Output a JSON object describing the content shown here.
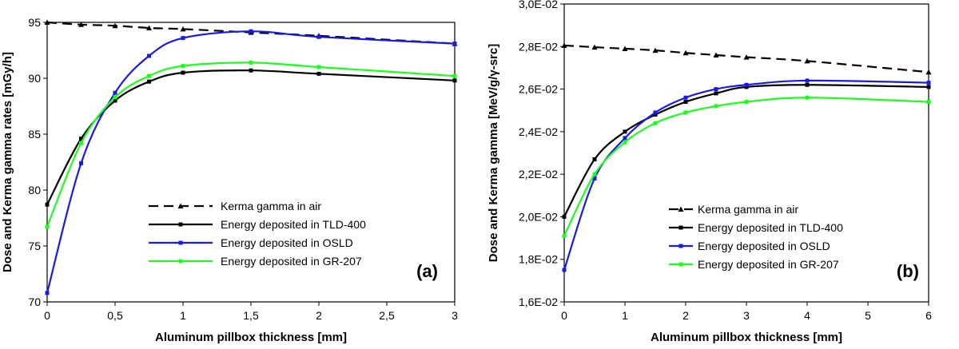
{
  "chart_data": [
    {
      "type": "line",
      "panel_label": "(a)",
      "xlabel": "Aluminum pillbox thickness [mm]",
      "ylabel": "Dose and Kerma gamma rates [mGy/h]",
      "xlim": [
        0,
        3
      ],
      "ylim": [
        70,
        95
      ],
      "x_ticks": [
        0,
        0.5,
        1,
        1.5,
        2,
        2.5,
        3
      ],
      "x_tick_labels": [
        "0",
        "0,5",
        "1",
        "1,5",
        "2",
        "2,5",
        "3"
      ],
      "y_ticks": [
        70,
        75,
        80,
        85,
        90,
        95
      ],
      "y_tick_labels": [
        "70",
        "75",
        "80",
        "85",
        "90",
        "95"
      ],
      "legend_position": "center-right",
      "series": [
        {
          "name": "Kerma gamma in air",
          "color": "#000000",
          "style": "dashed",
          "marker": "triangle",
          "x": [
            0,
            0.25,
            0.5,
            0.75,
            1,
            1.5,
            2,
            3
          ],
          "y": [
            95.0,
            94.8,
            94.7,
            94.5,
            94.4,
            94.1,
            93.8,
            93.1
          ]
        },
        {
          "name": "Energy deposited in TLD-400",
          "color": "#000000",
          "style": "solid",
          "marker": "square",
          "x": [
            0,
            0.25,
            0.5,
            0.75,
            1,
            1.5,
            2,
            3
          ],
          "y": [
            78.7,
            84.6,
            88.0,
            89.7,
            90.5,
            90.7,
            90.4,
            89.8
          ]
        },
        {
          "name": "Energy deposited in OSLD",
          "color": "#1a1ae6",
          "style": "solid",
          "marker": "square",
          "x": [
            0,
            0.25,
            0.5,
            0.75,
            1,
            1.5,
            2,
            3
          ],
          "y": [
            70.8,
            82.4,
            88.7,
            92.0,
            93.6,
            94.2,
            93.7,
            93.1
          ]
        },
        {
          "name": "Energy deposited in GR-207",
          "color": "#1aff1a",
          "style": "solid",
          "marker": "square",
          "x": [
            0,
            0.25,
            0.5,
            0.75,
            1,
            1.5,
            2,
            3
          ],
          "y": [
            76.7,
            84.2,
            88.3,
            90.2,
            91.1,
            91.4,
            91.0,
            90.2
          ]
        }
      ]
    },
    {
      "type": "line",
      "panel_label": "(b)",
      "xlabel": "Aluminum pillbox thickness [mm]",
      "ylabel": "Dose and Kerma gamma [MeV/g/γ-src]",
      "xlim": [
        0,
        6
      ],
      "ylim": [
        0.016,
        0.03
      ],
      "x_ticks": [
        0,
        1,
        2,
        3,
        4,
        5,
        6
      ],
      "x_tick_labels": [
        "0",
        "1",
        "2",
        "3",
        "4",
        "5",
        "6"
      ],
      "y_ticks": [
        0.016,
        0.018,
        0.02,
        0.022,
        0.024,
        0.026,
        0.028,
        0.03
      ],
      "y_tick_labels": [
        "1,6E-02",
        "1,8E-02",
        "2,0E-02",
        "2,2E-02",
        "2,4E-02",
        "2,6E-02",
        "2,8E-02",
        "3,0E-02"
      ],
      "legend_position": "bottom-right",
      "series": [
        {
          "name": "Kerma gamma in air",
          "color": "#000000",
          "style": "dashed",
          "marker": "triangle",
          "x": [
            0,
            0.5,
            1,
            1.5,
            2,
            2.5,
            3,
            4,
            6
          ],
          "y": [
            0.02805,
            0.02797,
            0.0279,
            0.02782,
            0.0277,
            0.0276,
            0.0275,
            0.02732,
            0.0268
          ]
        },
        {
          "name": "Energy deposited in TLD-400",
          "color": "#000000",
          "style": "solid",
          "marker": "square",
          "x": [
            0,
            0.5,
            1,
            1.5,
            2,
            2.5,
            3,
            4,
            6
          ],
          "y": [
            0.02,
            0.0227,
            0.024,
            0.0248,
            0.0254,
            0.0258,
            0.0261,
            0.0262,
            0.0261
          ]
        },
        {
          "name": "Energy deposited in OSLD",
          "color": "#1a1ae6",
          "style": "solid",
          "marker": "square",
          "x": [
            0,
            0.5,
            1,
            1.5,
            2,
            2.5,
            3,
            4,
            6
          ],
          "y": [
            0.0175,
            0.0218,
            0.0237,
            0.0249,
            0.0256,
            0.026,
            0.0262,
            0.0264,
            0.0263
          ]
        },
        {
          "name": "Energy deposited in GR-207",
          "color": "#1aff1a",
          "style": "solid",
          "marker": "square",
          "x": [
            0,
            0.5,
            1,
            1.5,
            2,
            2.5,
            3,
            4,
            6
          ],
          "y": [
            0.0191,
            0.022,
            0.0235,
            0.0244,
            0.0249,
            0.0252,
            0.0254,
            0.0256,
            0.0254
          ]
        }
      ]
    }
  ]
}
